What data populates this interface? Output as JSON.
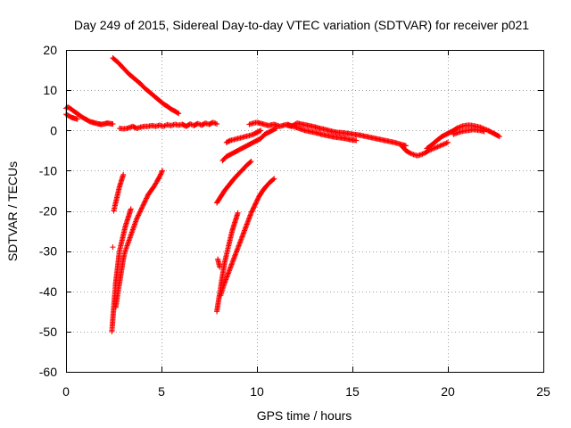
{
  "chart_data": {
    "type": "scatter",
    "title": "Day 249 of 2015, Sidereal Day-to-day VTEC variation (SDTVAR) for receiver p021",
    "xlabel": "GPS time / hours",
    "ylabel": "SDTVAR / TECUs",
    "xlim": [
      0,
      25
    ],
    "ylim": [
      -60,
      20
    ],
    "x_ticks": [
      0,
      5,
      10,
      15,
      20,
      25
    ],
    "y_ticks": [
      -60,
      -50,
      -40,
      -30,
      -20,
      -10,
      0,
      10,
      20
    ],
    "x_tick_labels": [
      "0",
      "5",
      "10",
      "15",
      "20",
      "25"
    ],
    "y_tick_labels": [
      "-60",
      "-50",
      "-40",
      "-30",
      "-20",
      "-10",
      "0",
      "10",
      "20"
    ],
    "grid": true,
    "marker": "plus",
    "series_color": "#ff0000",
    "series": [
      {
        "name": "s1",
        "points": [
          [
            0,
            5.5
          ],
          [
            0.1,
            5.8
          ],
          [
            0.2,
            5.5
          ],
          [
            0.35,
            5
          ],
          [
            0.5,
            4.5
          ],
          [
            0.65,
            4
          ],
          [
            0.8,
            3.4
          ],
          [
            0.95,
            3
          ],
          [
            1.1,
            2.6
          ],
          [
            1.25,
            2.2
          ],
          [
            1.4,
            2
          ],
          [
            1.55,
            1.8
          ],
          [
            1.7,
            1.6
          ],
          [
            1.85,
            1.5
          ],
          [
            2,
            1.6
          ],
          [
            2.15,
            1.8
          ],
          [
            2.3,
            1.7
          ],
          [
            2.45,
            1.6
          ]
        ]
      },
      {
        "name": "s2",
        "points": [
          [
            0,
            4
          ],
          [
            0.15,
            3.6
          ],
          [
            0.3,
            3.2
          ],
          [
            0.45,
            3
          ],
          [
            0.6,
            2.8
          ]
        ]
      },
      {
        "name": "s3",
        "points": [
          [
            2.8,
            0.5
          ],
          [
            3,
            0.4
          ],
          [
            3.2,
            0.5
          ],
          [
            3.5,
            1
          ],
          [
            3.7,
            0.5
          ],
          [
            3.9,
            0.8
          ],
          [
            4.1,
            1
          ],
          [
            4.3,
            1
          ],
          [
            4.5,
            1.2
          ],
          [
            4.7,
            1
          ],
          [
            4.9,
            1.3
          ],
          [
            5.1,
            1
          ],
          [
            5.3,
            1.4
          ],
          [
            5.5,
            1.2
          ],
          [
            5.7,
            1.5
          ],
          [
            5.9,
            1.3
          ],
          [
            6.1,
            1.5
          ],
          [
            6.3,
            1
          ],
          [
            6.5,
            1.6
          ],
          [
            6.7,
            1.2
          ],
          [
            6.9,
            1.7
          ],
          [
            7.1,
            1.3
          ],
          [
            7.3,
            1.8
          ],
          [
            7.5,
            1.5
          ],
          [
            7.7,
            2
          ],
          [
            7.9,
            1.6
          ]
        ]
      },
      {
        "name": "s4",
        "points": [
          [
            2.45,
            18
          ],
          [
            2.7,
            17
          ],
          [
            2.9,
            16
          ],
          [
            3.1,
            15
          ],
          [
            3.3,
            14
          ],
          [
            3.5,
            13.2
          ],
          [
            3.7,
            12.4
          ],
          [
            3.9,
            11.6
          ],
          [
            4.1,
            10.6
          ],
          [
            4.3,
            9.8
          ],
          [
            4.5,
            9
          ],
          [
            4.7,
            8.2
          ],
          [
            4.9,
            7.4
          ],
          [
            5.1,
            6.6
          ],
          [
            5.3,
            6
          ],
          [
            5.5,
            5.3
          ],
          [
            5.7,
            4.8
          ],
          [
            5.9,
            4.2
          ]
        ]
      },
      {
        "name": "s5",
        "points": [
          [
            2.5,
            -20
          ],
          [
            2.6,
            -18
          ],
          [
            2.7,
            -16
          ],
          [
            2.8,
            -14
          ],
          [
            2.9,
            -12.5
          ],
          [
            3,
            -11
          ]
        ]
      },
      {
        "name": "s6",
        "points": [
          [
            2.4,
            -50
          ],
          [
            2.45,
            -47
          ],
          [
            2.5,
            -44
          ],
          [
            2.55,
            -41
          ],
          [
            2.6,
            -38
          ],
          [
            2.65,
            -36
          ],
          [
            2.7,
            -34
          ],
          [
            2.75,
            -32
          ],
          [
            2.8,
            -30
          ],
          [
            2.9,
            -28
          ],
          [
            3,
            -26
          ],
          [
            3.1,
            -24
          ],
          [
            3.2,
            -22.5
          ],
          [
            3.3,
            -21
          ],
          [
            3.4,
            -19.5
          ]
        ]
      },
      {
        "name": "s7",
        "points": [
          [
            2.6,
            -44
          ],
          [
            2.7,
            -41
          ],
          [
            2.8,
            -38
          ],
          [
            2.9,
            -35
          ],
          [
            3,
            -32
          ],
          [
            3.1,
            -30
          ],
          [
            3.25,
            -28
          ],
          [
            3.4,
            -26
          ],
          [
            3.55,
            -24
          ],
          [
            3.7,
            -22
          ],
          [
            3.85,
            -20.5
          ],
          [
            4,
            -19
          ],
          [
            4.15,
            -17.5
          ],
          [
            4.3,
            -16
          ],
          [
            4.45,
            -15
          ],
          [
            4.6,
            -14
          ],
          [
            4.75,
            -12.8
          ],
          [
            4.9,
            -11.5
          ],
          [
            5.05,
            -10
          ]
        ]
      },
      {
        "name": "s8",
        "points": [
          [
            2.45,
            -29
          ]
        ]
      },
      {
        "name": "s9",
        "points": [
          [
            7.9,
            -18
          ],
          [
            8.1,
            -16.5
          ],
          [
            8.3,
            -15
          ],
          [
            8.5,
            -13.8
          ],
          [
            8.7,
            -12.6
          ],
          [
            8.9,
            -11.5
          ],
          [
            9.1,
            -10.5
          ],
          [
            9.3,
            -9.5
          ],
          [
            9.5,
            -8.5
          ],
          [
            9.7,
            -7.7
          ]
        ]
      },
      {
        "name": "s10",
        "points": [
          [
            7.95,
            -32
          ],
          [
            8,
            -33
          ],
          [
            8.05,
            -34
          ]
        ]
      },
      {
        "name": "s11",
        "points": [
          [
            7.9,
            -45
          ],
          [
            8,
            -42
          ],
          [
            8.1,
            -39
          ],
          [
            8.2,
            -36
          ],
          [
            8.3,
            -33
          ],
          [
            8.4,
            -31
          ],
          [
            8.5,
            -29
          ],
          [
            8.6,
            -27
          ],
          [
            8.7,
            -25
          ],
          [
            8.8,
            -23.5
          ],
          [
            8.9,
            -22
          ],
          [
            9,
            -20.5
          ]
        ]
      },
      {
        "name": "s12",
        "points": [
          [
            8.1,
            -41
          ],
          [
            8.3,
            -38
          ],
          [
            8.5,
            -35.5
          ],
          [
            8.7,
            -33
          ],
          [
            8.9,
            -30.5
          ],
          [
            9.1,
            -28
          ],
          [
            9.3,
            -25.5
          ],
          [
            9.5,
            -23
          ],
          [
            9.7,
            -20.5
          ],
          [
            9.9,
            -18.5
          ],
          [
            10.1,
            -16.5
          ],
          [
            10.3,
            -15
          ],
          [
            10.5,
            -13.8
          ],
          [
            10.7,
            -12.8
          ],
          [
            10.9,
            -12
          ]
        ]
      },
      {
        "name": "s13",
        "points": [
          [
            8.2,
            -7.5
          ],
          [
            8.4,
            -6.5
          ],
          [
            8.6,
            -6
          ],
          [
            8.8,
            -5.5
          ],
          [
            9,
            -5
          ],
          [
            9.2,
            -4.5
          ],
          [
            9.4,
            -4
          ],
          [
            9.6,
            -3.5
          ],
          [
            9.8,
            -3
          ],
          [
            10,
            -2.5
          ],
          [
            10.2,
            -2
          ],
          [
            10.4,
            -1
          ],
          [
            10.6,
            -0.5
          ],
          [
            10.8,
            0
          ],
          [
            11,
            0.5
          ]
        ]
      },
      {
        "name": "s14",
        "points": [
          [
            8.4,
            -3
          ],
          [
            8.6,
            -2.5
          ],
          [
            8.8,
            -2.3
          ],
          [
            9,
            -2
          ],
          [
            9.2,
            -1.8
          ],
          [
            9.4,
            -1.5
          ],
          [
            9.6,
            -1.3
          ],
          [
            9.8,
            -1
          ],
          [
            10,
            -0.5
          ],
          [
            10.2,
            0
          ]
        ]
      },
      {
        "name": "s15",
        "points": [
          [
            9.6,
            1.5
          ],
          [
            9.8,
            1.8
          ],
          [
            10,
            2
          ],
          [
            10.3,
            1.6
          ],
          [
            10.6,
            1.2
          ],
          [
            10.9,
            1.5
          ],
          [
            11.2,
            1
          ],
          [
            11.5,
            1.4
          ],
          [
            11.8,
            1
          ],
          [
            12.1,
            1.8
          ],
          [
            12.4,
            1.5
          ],
          [
            12.7,
            1.2
          ],
          [
            13,
            0.9
          ],
          [
            13.3,
            0.5
          ],
          [
            13.6,
            0.2
          ],
          [
            13.9,
            -0.2
          ],
          [
            14.2,
            -0.5
          ],
          [
            14.5,
            -0.6
          ],
          [
            14.8,
            -0.8
          ],
          [
            15.1,
            -1
          ],
          [
            15.4,
            -1.2
          ],
          [
            15.7,
            -1.5
          ],
          [
            16,
            -1.8
          ],
          [
            16.3,
            -2.1
          ],
          [
            16.6,
            -2.4
          ],
          [
            16.9,
            -2.7
          ],
          [
            17.2,
            -3
          ],
          [
            17.5,
            -3.4
          ],
          [
            17.8,
            -3.8
          ]
        ]
      },
      {
        "name": "s16",
        "points": [
          [
            11.6,
            1.5
          ],
          [
            11.9,
            1
          ],
          [
            12.2,
            0.5
          ],
          [
            12.5,
            0
          ],
          [
            12.8,
            -0.3
          ],
          [
            13.1,
            -0.6
          ],
          [
            13.4,
            -1
          ],
          [
            13.7,
            -1.3
          ],
          [
            14,
            -1.6
          ],
          [
            14.3,
            -1.8
          ],
          [
            14.6,
            -2
          ],
          [
            14.9,
            -2.3
          ],
          [
            15.2,
            -2.5
          ]
        ]
      },
      {
        "name": "s17",
        "points": [
          [
            17.6,
            -4
          ],
          [
            17.8,
            -5
          ],
          [
            18,
            -5.6
          ],
          [
            18.2,
            -6
          ],
          [
            18.4,
            -6.3
          ],
          [
            18.6,
            -6
          ],
          [
            18.8,
            -5.6
          ],
          [
            19,
            -5
          ],
          [
            19.2,
            -4.6
          ],
          [
            19.4,
            -4.2
          ],
          [
            19.6,
            -3.8
          ],
          [
            19.8,
            -3.4
          ],
          [
            20,
            -3
          ]
        ]
      },
      {
        "name": "s18",
        "points": [
          [
            18.9,
            -4.5
          ],
          [
            19.1,
            -3.8
          ],
          [
            19.3,
            -3
          ],
          [
            19.5,
            -2.2
          ],
          [
            19.7,
            -1.5
          ],
          [
            19.9,
            -1
          ],
          [
            20.1,
            -0.5
          ],
          [
            20.3,
            0
          ],
          [
            20.5,
            0.6
          ],
          [
            20.7,
            1
          ],
          [
            20.9,
            1.2
          ],
          [
            21.1,
            1.3
          ],
          [
            21.3,
            1.2
          ],
          [
            21.5,
            1
          ],
          [
            21.7,
            0.8
          ],
          [
            21.9,
            0.4
          ],
          [
            22.1,
            0
          ],
          [
            22.3,
            -0.5
          ],
          [
            22.5,
            -1
          ],
          [
            22.7,
            -1.5
          ]
        ]
      },
      {
        "name": "s19",
        "points": [
          [
            20.3,
            -1
          ],
          [
            20.5,
            -0.6
          ],
          [
            20.7,
            -0.3
          ],
          [
            20.9,
            -0.1
          ],
          [
            21.1,
            0
          ],
          [
            21.3,
            0.2
          ],
          [
            21.5,
            0.1
          ],
          [
            21.7,
            0
          ],
          [
            21.9,
            -0.3
          ]
        ]
      }
    ]
  }
}
